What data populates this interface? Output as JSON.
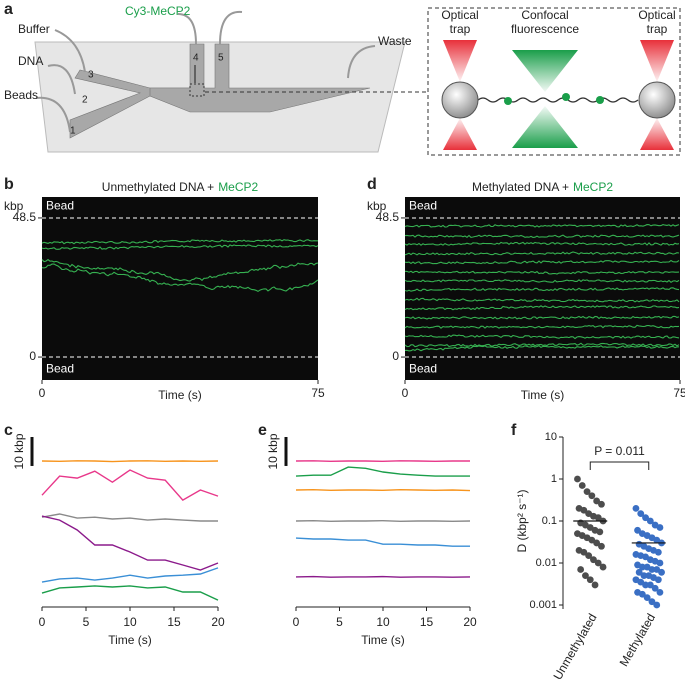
{
  "figure": {
    "label": "a",
    "cy3": "Cy3-MeCP2",
    "buffer": "Buffer",
    "dna": "DNA",
    "beads": "Beads",
    "waste": "Waste",
    "ports": [
      "1",
      "2",
      "3",
      "4",
      "5"
    ],
    "optical_trap": "Optical trap",
    "confocal": "Confocal fluorescence"
  },
  "chart_data": [
    {
      "type": "kymograph",
      "label": "b",
      "title": "Unmethylated DNA +",
      "title_highlight": "MeCP2",
      "ylabel": "kbp",
      "bead": "Bead",
      "xlabel": "Time (s)",
      "xlim": [
        0,
        75
      ],
      "xticks": [
        0,
        75
      ],
      "ylim": [
        -8,
        55.8
      ],
      "yticks": [
        0,
        48.5
      ]
    },
    {
      "type": "kymograph",
      "label": "d",
      "title": "Methylated DNA +",
      "title_highlight": "MeCP2",
      "ylabel": "kbp",
      "bead": "Bead",
      "xlabel": "Time (s)",
      "xlim": [
        0,
        75
      ],
      "xticks": [
        0,
        75
      ],
      "ylim": [
        -8,
        55.8
      ],
      "yticks": [
        0,
        48.5
      ]
    },
    {
      "type": "line",
      "label": "c",
      "xlabel": "Time (s)",
      "scale_bar": {
        "value": 10,
        "label": "10 kbp"
      },
      "x": [
        0,
        2,
        4,
        6,
        8,
        10,
        12,
        14,
        16,
        18,
        20
      ],
      "xlim": [
        0,
        20
      ],
      "xticks": [
        0,
        5,
        10,
        15,
        20
      ],
      "ylim": [
        0,
        58
      ],
      "series": [
        {
          "color": "#f7941d",
          "values": [
            49.7,
            49.6,
            49.8,
            49.7,
            49.5,
            49.7,
            49.8,
            49.6,
            49.7,
            49.6,
            49.7
          ]
        },
        {
          "color": "#e8388a",
          "values": [
            37.9,
            44.5,
            43.8,
            46.2,
            42.4,
            46.6,
            43.8,
            43.1,
            36.2,
            39.7,
            37.6
          ]
        },
        {
          "color": "#8a8a8a",
          "values": [
            30.3,
            31.4,
            30.0,
            30.3,
            29.7,
            30.0,
            29.3,
            29.7,
            29.3,
            29.0,
            29.0
          ]
        },
        {
          "color": "#8b1a8b",
          "values": [
            30.7,
            29.3,
            25.9,
            20.7,
            20.7,
            18.3,
            15.5,
            15.5,
            13.8,
            12.1,
            14.5
          ]
        },
        {
          "color": "#3a8fd6",
          "values": [
            7.9,
            9.0,
            9.3,
            8.6,
            9.3,
            10.3,
            9.3,
            10.0,
            10.3,
            10.7,
            12.8
          ]
        },
        {
          "color": "#1a9e4a",
          "values": [
            4.1,
            5.9,
            6.2,
            6.6,
            6.2,
            6.6,
            5.9,
            6.2,
            4.5,
            4.5,
            1.7
          ]
        }
      ]
    },
    {
      "type": "line",
      "label": "e",
      "xlabel": "Time (s)",
      "scale_bar": {
        "value": 10,
        "label": "10 kbp"
      },
      "x": [
        0,
        2,
        4,
        6,
        8,
        10,
        12,
        14,
        16,
        18,
        20
      ],
      "xlim": [
        0,
        20
      ],
      "xticks": [
        0,
        5,
        10,
        15,
        20
      ],
      "ylim": [
        0,
        58
      ],
      "series": [
        {
          "color": "#e8388a",
          "values": [
            49.7,
            49.8,
            49.6,
            49.7,
            49.7,
            49.6,
            49.8,
            49.7,
            49.6,
            49.7,
            49.7
          ]
        },
        {
          "color": "#1a9e4a",
          "values": [
            44.5,
            44.8,
            44.8,
            47.6,
            47.2,
            45.9,
            45.2,
            44.8,
            44.5,
            44.5,
            44.5
          ]
        },
        {
          "color": "#f7941d",
          "values": [
            39.7,
            39.8,
            39.6,
            39.7,
            39.7,
            39.6,
            39.8,
            39.7,
            39.6,
            39.7,
            39.5
          ]
        },
        {
          "color": "#8a8a8a",
          "values": [
            29.0,
            29.1,
            28.9,
            29.0,
            29.0,
            29.1,
            28.9,
            29.0,
            29.0,
            28.9,
            29.0
          ]
        },
        {
          "color": "#3a8fd6",
          "values": [
            23.1,
            22.8,
            22.8,
            22.4,
            22.4,
            21.0,
            21.0,
            20.7,
            20.7,
            20.3,
            20.3
          ]
        },
        {
          "color": "#8b1a8b",
          "values": [
            9.7,
            9.8,
            9.6,
            9.7,
            9.7,
            9.8,
            9.6,
            9.7,
            9.7,
            9.6,
            9.7
          ]
        }
      ]
    },
    {
      "type": "strip",
      "label": "f",
      "ylabel": "D (kbp² s⁻¹)",
      "annotation": "P = 0.011",
      "log_scale": true,
      "ylim": [
        0.001,
        10
      ],
      "yticks": [
        0.001,
        0.01,
        0.1,
        1,
        10
      ],
      "categories": [
        "Unmethylated",
        "Methylated"
      ],
      "colors": [
        "#4d4d4d",
        "#3a6fc4"
      ],
      "means": [
        0.1,
        0.03
      ],
      "values": [
        [
          1.0,
          0.7,
          0.5,
          0.4,
          0.3,
          0.25,
          0.2,
          0.18,
          0.15,
          0.13,
          0.12,
          0.1,
          0.09,
          0.08,
          0.07,
          0.06,
          0.055,
          0.05,
          0.045,
          0.04,
          0.035,
          0.03,
          0.025,
          0.02,
          0.018,
          0.015,
          0.012,
          0.01,
          0.008,
          0.007,
          0.005,
          0.004,
          0.003
        ],
        [
          0.2,
          0.15,
          0.12,
          0.1,
          0.08,
          0.07,
          0.06,
          0.05,
          0.045,
          0.04,
          0.035,
          0.03,
          0.028,
          0.025,
          0.022,
          0.02,
          0.018,
          0.016,
          0.015,
          0.014,
          0.012,
          0.011,
          0.01,
          0.009,
          0.008,
          0.008,
          0.007,
          0.007,
          0.006,
          0.006,
          0.005,
          0.005,
          0.0045,
          0.004,
          0.004,
          0.0035,
          0.003,
          0.003,
          0.0025,
          0.002,
          0.002,
          0.0018,
          0.0015,
          0.0012,
          0.001
        ]
      ]
    }
  ]
}
